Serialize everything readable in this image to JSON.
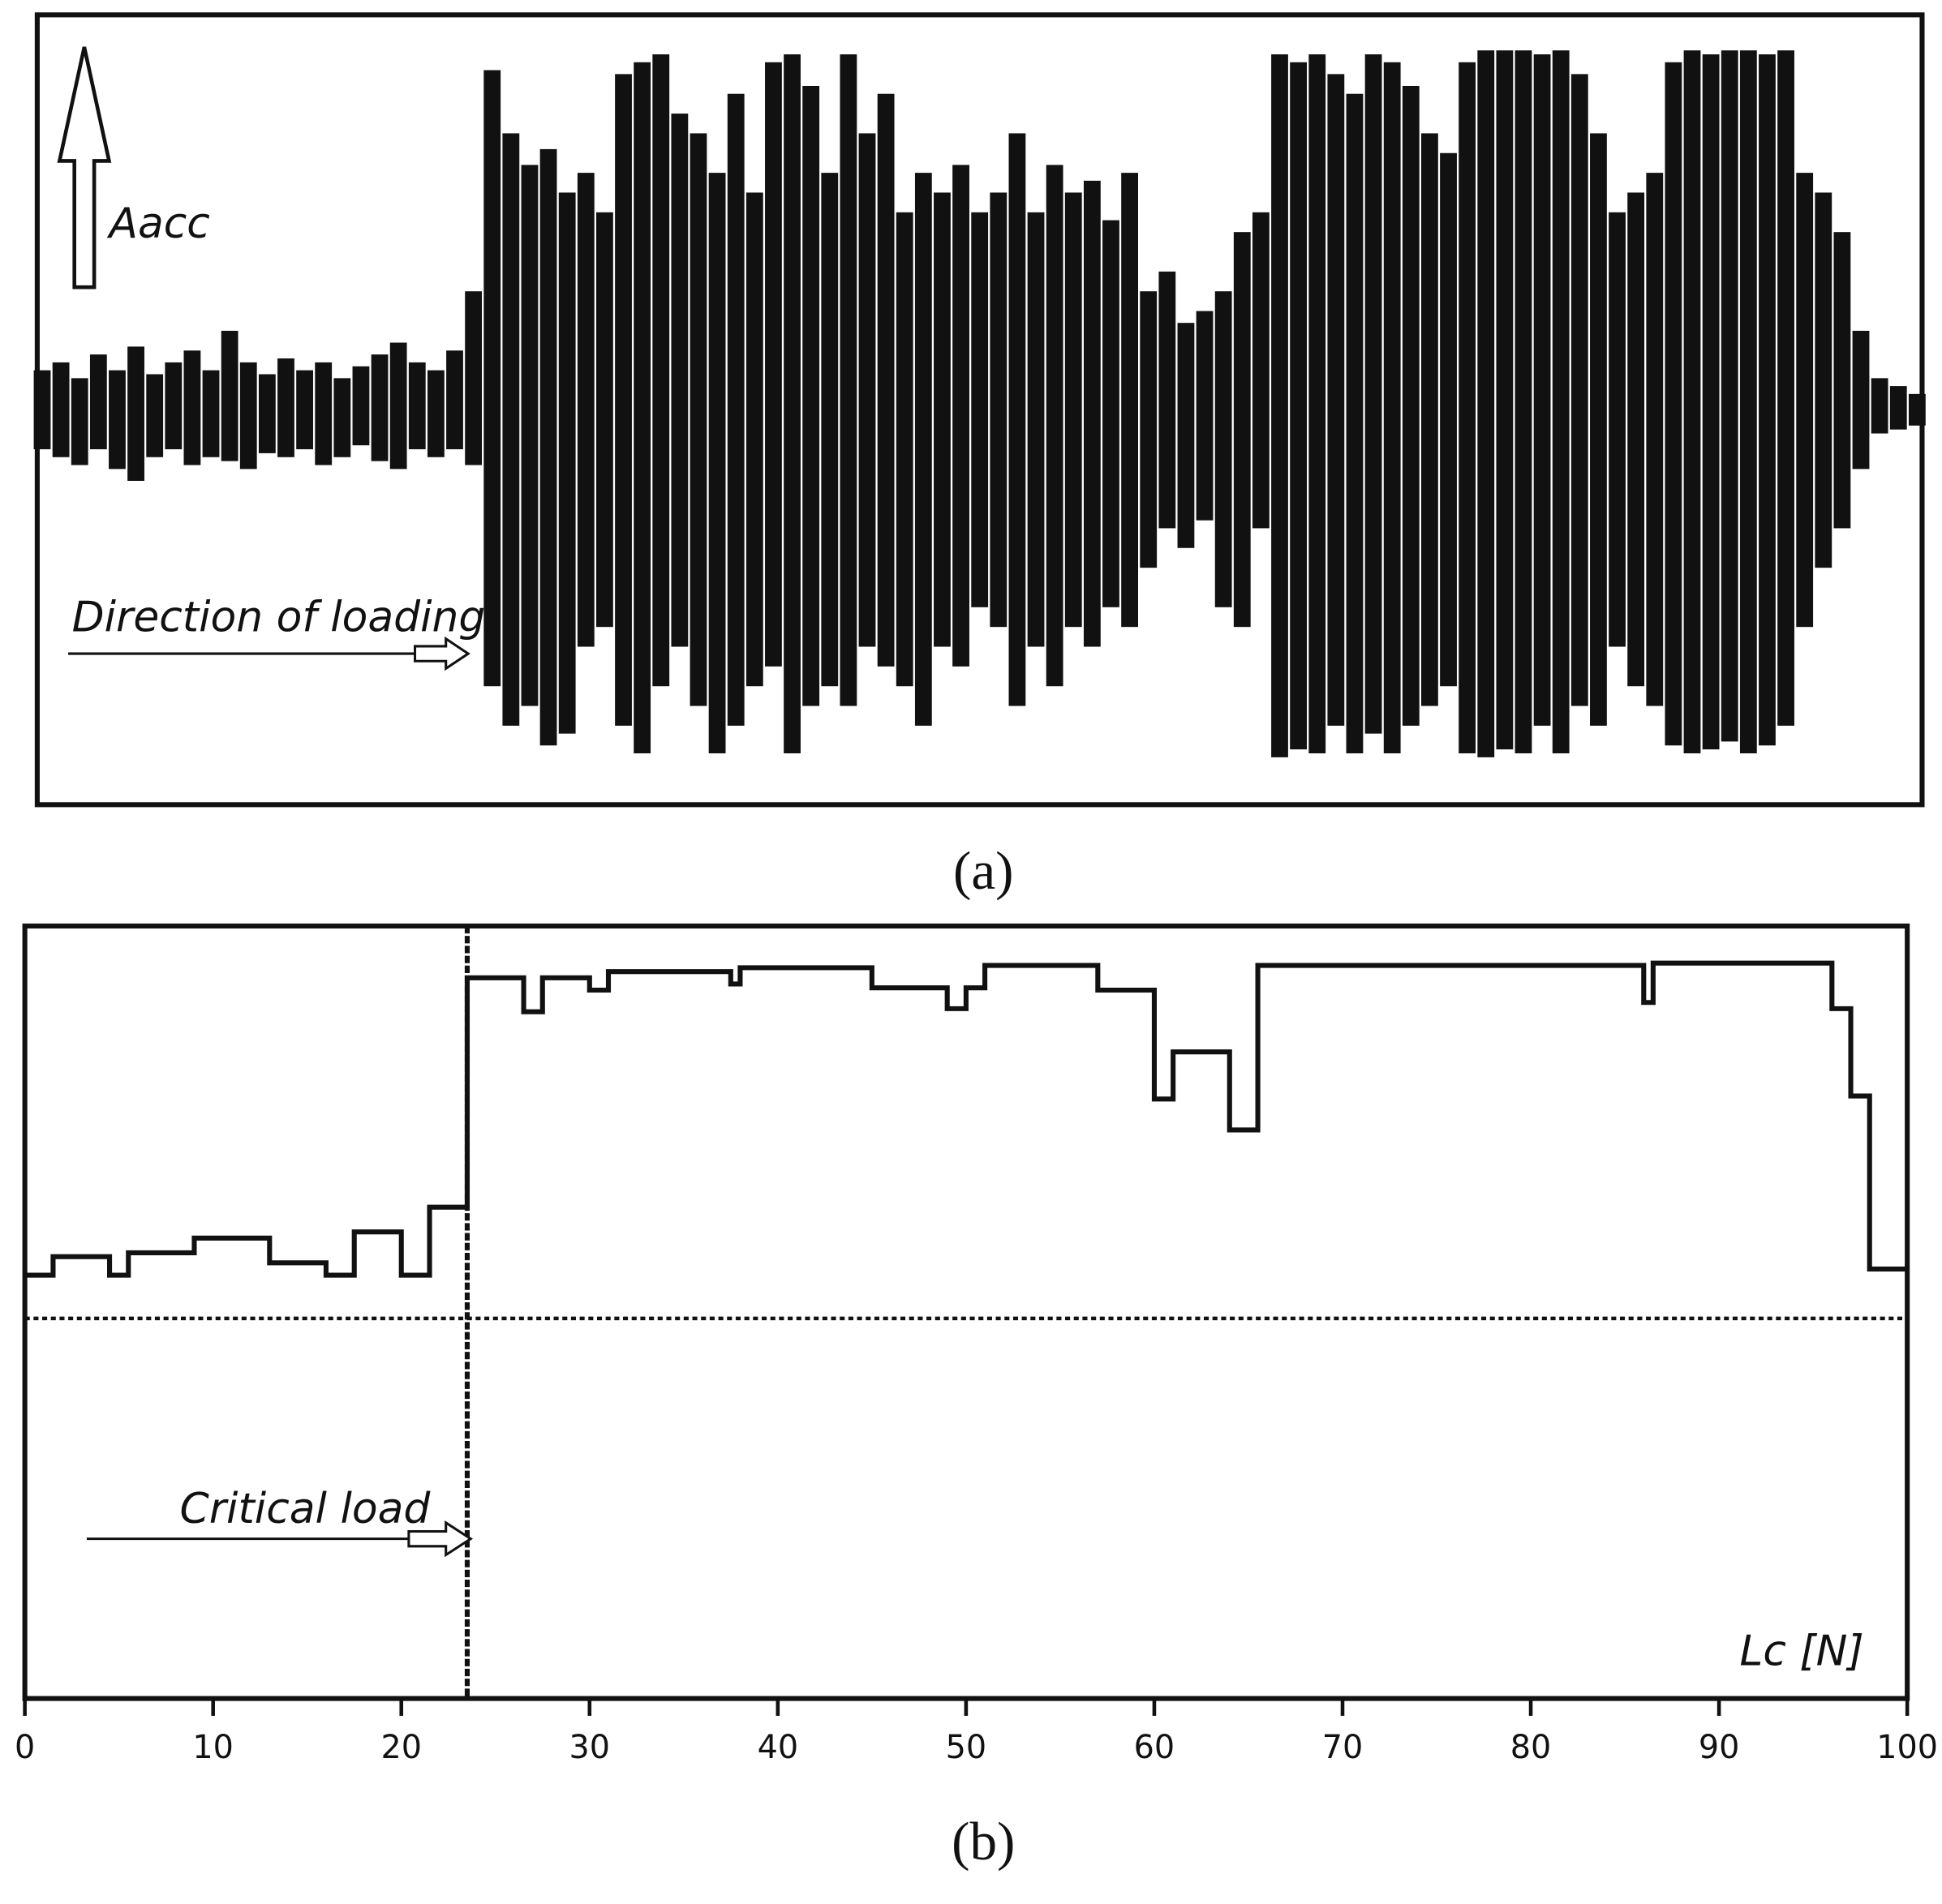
{
  "chart_data": [
    {
      "type": "signal",
      "annotations": {
        "axis": "Aacc",
        "direction": "Direction of loading"
      },
      "caption": "(a)",
      "xlim": [
        0,
        100
      ],
      "ylim": [
        -1,
        1
      ],
      "x": [
        0,
        1,
        2,
        3,
        4,
        5,
        6,
        7,
        8,
        9,
        10,
        11,
        12,
        13,
        14,
        15,
        16,
        17,
        18,
        19,
        20,
        21,
        22,
        23,
        24,
        25,
        26,
        27,
        28,
        29,
        30,
        31,
        32,
        33,
        34,
        35,
        36,
        37,
        38,
        39,
        40,
        41,
        42,
        43,
        44,
        45,
        46,
        47,
        48,
        49,
        50,
        51,
        52,
        53,
        54,
        55,
        56,
        57,
        58,
        59,
        60,
        61,
        62,
        63,
        64,
        65,
        66,
        67,
        68,
        69,
        70,
        71,
        72,
        73,
        74,
        75,
        76,
        77,
        78,
        79,
        80,
        81,
        82,
        83,
        84,
        85,
        86,
        87,
        88,
        89,
        90,
        91,
        92,
        93,
        94,
        95,
        96,
        97,
        98,
        99,
        100
      ],
      "series": [
        {
          "color": "#111111",
          "values": [
            0.1,
            0.12,
            0.08,
            0.14,
            0.1,
            0.16,
            0.09,
            0.12,
            0.15,
            0.1,
            0.2,
            0.12,
            0.09,
            0.13,
            0.1,
            0.12,
            0.08,
            0.11,
            0.14,
            0.17,
            0.12,
            0.1,
            0.15,
            0.3,
            0.86,
            0.7,
            0.62,
            0.66,
            0.55,
            0.6,
            0.5,
            0.85,
            0.88,
            0.9,
            0.75,
            0.7,
            0.6,
            0.8,
            0.55,
            0.88,
            0.9,
            0.82,
            0.6,
            0.9,
            0.7,
            0.8,
            0.5,
            0.6,
            0.55,
            0.62,
            0.5,
            0.55,
            0.7,
            0.5,
            0.62,
            0.55,
            0.58,
            0.48,
            0.6,
            0.3,
            0.35,
            0.22,
            0.25,
            0.3,
            0.45,
            0.5,
            0.9,
            0.88,
            0.9,
            0.85,
            0.8,
            0.9,
            0.88,
            0.82,
            0.7,
            0.65,
            0.88,
            0.91,
            0.91,
            0.91,
            0.9,
            0.91,
            0.85,
            0.7,
            0.5,
            0.55,
            0.6,
            0.88,
            0.91,
            0.9,
            0.91,
            0.91,
            0.9,
            0.91,
            0.6,
            0.55,
            0.45,
            0.2,
            0.08,
            0.06,
            0.04
          ]
        },
        {
          "color": "#111111",
          "values": [
            -0.1,
            -0.12,
            -0.14,
            -0.1,
            -0.15,
            -0.18,
            -0.12,
            -0.1,
            -0.14,
            -0.12,
            -0.13,
            -0.15,
            -0.11,
            -0.12,
            -0.1,
            -0.14,
            -0.12,
            -0.09,
            -0.13,
            -0.15,
            -0.1,
            -0.12,
            -0.1,
            -0.14,
            -0.7,
            -0.8,
            -0.75,
            -0.85,
            -0.82,
            -0.6,
            -0.55,
            -0.8,
            -0.87,
            -0.7,
            -0.6,
            -0.75,
            -0.87,
            -0.8,
            -0.7,
            -0.65,
            -0.87,
            -0.75,
            -0.7,
            -0.75,
            -0.6,
            -0.65,
            -0.7,
            -0.8,
            -0.6,
            -0.65,
            -0.5,
            -0.55,
            -0.75,
            -0.6,
            -0.7,
            -0.55,
            -0.6,
            -0.5,
            -0.55,
            -0.4,
            -0.3,
            -0.35,
            -0.28,
            -0.5,
            -0.55,
            -0.3,
            -0.88,
            -0.86,
            -0.87,
            -0.8,
            -0.87,
            -0.82,
            -0.87,
            -0.8,
            -0.75,
            -0.7,
            -0.87,
            -0.88,
            -0.86,
            -0.87,
            -0.8,
            -0.87,
            -0.75,
            -0.8,
            -0.6,
            -0.7,
            -0.75,
            -0.85,
            -0.87,
            -0.86,
            -0.84,
            -0.87,
            -0.85,
            -0.8,
            -0.55,
            -0.4,
            -0.3,
            -0.15,
            -0.06,
            -0.05,
            -0.04
          ]
        }
      ]
    },
    {
      "type": "step",
      "x_label": "Lc [N]",
      "caption": "(b)",
      "annotations": {
        "critical": "Critical load"
      },
      "xlim": [
        0,
        100
      ],
      "ylim": [
        0,
        100
      ],
      "xticks": [
        0,
        10,
        20,
        30,
        40,
        50,
        60,
        70,
        80,
        90,
        100
      ],
      "color": "#111111",
      "x": [
        0,
        1.5,
        4.5,
        5.5,
        9,
        13,
        16,
        17.5,
        20,
        21.5,
        23.5,
        26.5,
        27.5,
        30,
        31,
        37.5,
        38,
        45,
        49,
        50,
        51,
        57,
        60,
        61,
        64,
        65.5,
        86,
        86.5,
        96,
        97,
        98,
        100
      ],
      "values": [
        54.8,
        57.2,
        54.8,
        57.7,
        59.6,
        56.4,
        54.8,
        60.4,
        54.8,
        63.6,
        93.3,
        88.9,
        93.3,
        91.7,
        94.1,
        92.5,
        94.6,
        92.0,
        89.3,
        92.0,
        94.9,
        91.7,
        77.6,
        83.7,
        73.6,
        94.9,
        90.1,
        95.2,
        89.3,
        78.0,
        55.6,
        55.6
      ],
      "threshold": 49.2,
      "critical_load": 23.5
    }
  ]
}
